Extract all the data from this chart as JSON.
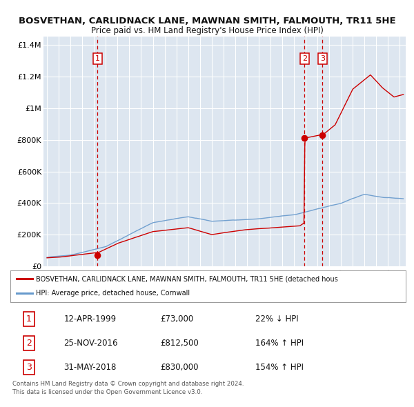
{
  "title": "BOSVETHAN, CARLIDNACK LANE, MAWNAN SMITH, FALMOUTH, TR11 5HE",
  "subtitle": "Price paid vs. HM Land Registry's House Price Index (HPI)",
  "bg_color": "#ffffff",
  "plot_bg_color": "#dde6f0",
  "grid_color": "#ffffff",
  "ylim": [
    0,
    1450000
  ],
  "yticks": [
    0,
    200000,
    400000,
    600000,
    800000,
    1000000,
    1200000,
    1400000
  ],
  "ytick_labels": [
    "£0",
    "£200K",
    "£400K",
    "£600K",
    "£800K",
    "£1M",
    "£1.2M",
    "£1.4M"
  ],
  "xlim_start": 1994.7,
  "xlim_end": 2025.5,
  "xticks": [
    1995,
    1996,
    1997,
    1998,
    1999,
    2000,
    2001,
    2002,
    2003,
    2004,
    2005,
    2006,
    2007,
    2008,
    2009,
    2010,
    2011,
    2012,
    2013,
    2014,
    2015,
    2016,
    2017,
    2018,
    2019,
    2020,
    2021,
    2022,
    2023,
    2024,
    2025
  ],
  "sale_dates": [
    1999.283,
    2016.9,
    2018.42
  ],
  "sale_prices": [
    73000,
    812500,
    830000
  ],
  "sale_labels": [
    "1",
    "2",
    "3"
  ],
  "vline_color": "#cc0000",
  "dot_color": "#cc0000",
  "legend_line1": "BOSVETHAN, CARLIDNACK LANE, MAWNAN SMITH, FALMOUTH, TR11 5HE (detached hous",
  "legend_line2": "HPI: Average price, detached house, Cornwall",
  "table_rows": [
    [
      "1",
      "12-APR-1999",
      "£73,000",
      "22% ↓ HPI"
    ],
    [
      "2",
      "25-NOV-2016",
      "£812,500",
      "164% ↑ HPI"
    ],
    [
      "3",
      "31-MAY-2018",
      "£830,000",
      "154% ↑ HPI"
    ]
  ],
  "footnote1": "Contains HM Land Registry data © Crown copyright and database right 2024.",
  "footnote2": "This data is licensed under the Open Government Licence v3.0.",
  "red_line_color": "#cc0000",
  "blue_line_color": "#6699cc"
}
